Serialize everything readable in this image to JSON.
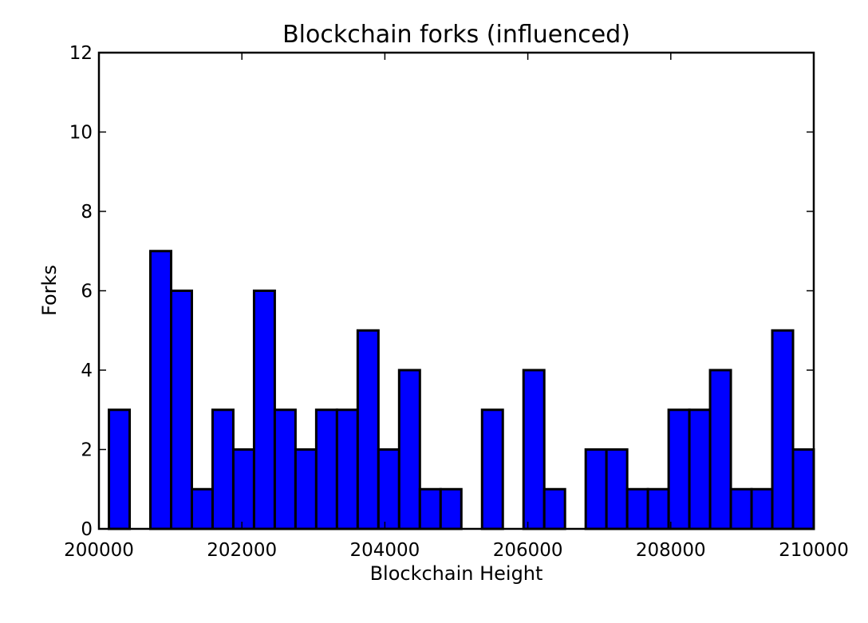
{
  "chart_data": {
    "type": "bar",
    "title": "Blockchain forks (influenced)",
    "xlabel": "Blockchain Height",
    "ylabel": "Forks",
    "xlim": [
      200000,
      210000
    ],
    "ylim": [
      0,
      12
    ],
    "xticks": [
      200000,
      202000,
      204000,
      206000,
      208000,
      210000
    ],
    "yticks": [
      0,
      2,
      4,
      6,
      8,
      10,
      12
    ],
    "bar_color": "#0000ff",
    "edge_color": "#000000",
    "grid": false,
    "bins": [
      {
        "x0": 200140,
        "x1": 200430,
        "value": 3
      },
      {
        "x0": 200430,
        "x1": 200720,
        "value": 0
      },
      {
        "x0": 200720,
        "x1": 201010,
        "value": 7
      },
      {
        "x0": 201010,
        "x1": 201300,
        "value": 6
      },
      {
        "x0": 201300,
        "x1": 201590,
        "value": 1
      },
      {
        "x0": 201590,
        "x1": 201880,
        "value": 3
      },
      {
        "x0": 201880,
        "x1": 202170,
        "value": 2
      },
      {
        "x0": 202170,
        "x1": 202460,
        "value": 6
      },
      {
        "x0": 202460,
        "x1": 202750,
        "value": 3
      },
      {
        "x0": 202750,
        "x1": 203040,
        "value": 2
      },
      {
        "x0": 203040,
        "x1": 203330,
        "value": 3
      },
      {
        "x0": 203330,
        "x1": 203620,
        "value": 3
      },
      {
        "x0": 203620,
        "x1": 203910,
        "value": 5
      },
      {
        "x0": 203910,
        "x1": 204200,
        "value": 2
      },
      {
        "x0": 204200,
        "x1": 204490,
        "value": 4
      },
      {
        "x0": 204490,
        "x1": 204780,
        "value": 1
      },
      {
        "x0": 204780,
        "x1": 205070,
        "value": 1
      },
      {
        "x0": 205070,
        "x1": 205360,
        "value": 0
      },
      {
        "x0": 205360,
        "x1": 205650,
        "value": 3
      },
      {
        "x0": 205650,
        "x1": 205940,
        "value": 0
      },
      {
        "x0": 205940,
        "x1": 206230,
        "value": 4
      },
      {
        "x0": 206230,
        "x1": 206520,
        "value": 1
      },
      {
        "x0": 206520,
        "x1": 206810,
        "value": 0
      },
      {
        "x0": 206810,
        "x1": 207100,
        "value": 2
      },
      {
        "x0": 207100,
        "x1": 207390,
        "value": 2
      },
      {
        "x0": 207390,
        "x1": 207680,
        "value": 1
      },
      {
        "x0": 207680,
        "x1": 207970,
        "value": 1
      },
      {
        "x0": 207970,
        "x1": 208260,
        "value": 3
      },
      {
        "x0": 208260,
        "x1": 208550,
        "value": 3
      },
      {
        "x0": 208550,
        "x1": 208840,
        "value": 4
      },
      {
        "x0": 208840,
        "x1": 209130,
        "value": 1
      },
      {
        "x0": 209130,
        "x1": 209420,
        "value": 1
      },
      {
        "x0": 209420,
        "x1": 209710,
        "value": 5
      },
      {
        "x0": 209710,
        "x1": 210000,
        "value": 2
      }
    ]
  }
}
